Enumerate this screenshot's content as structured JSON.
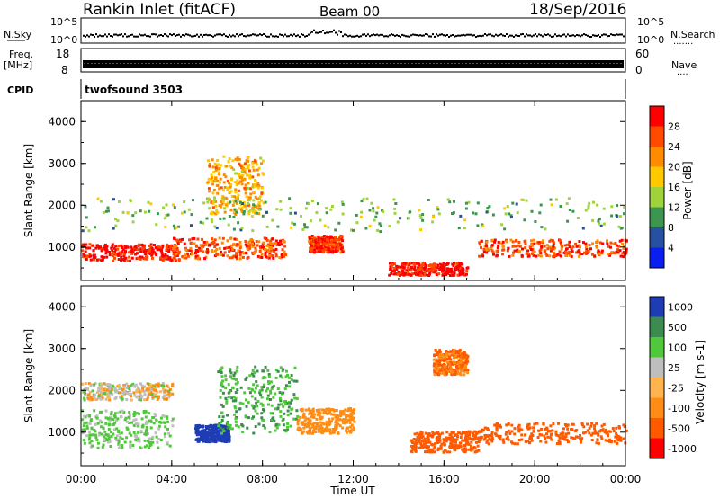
{
  "header": {
    "station": "Rankin Inlet (fitACF)",
    "beam": "Beam 00",
    "date": "18/Sep/2016"
  },
  "strips": {
    "nsky_label": "N.Sky",
    "nsky_ticks": [
      "10^5",
      "10^0"
    ],
    "nsearch_label": "N.Search",
    "nsearch_ticks": [
      "10^5",
      "10^0"
    ],
    "freq_label_1": "Freq.",
    "freq_label_2": "[MHz]",
    "freq_ticks": [
      "18",
      "8"
    ],
    "nave_label": "Nave",
    "nave_ticks": [
      "60",
      "0"
    ],
    "cpid_label": "CPID",
    "cpid_value": "twofsound 3503"
  },
  "chart_data": [
    {
      "type": "heatmap",
      "panel": "power",
      "xlabel": "",
      "ylabel": "Slant Range [km]",
      "y_ticks": [
        "1000",
        "2000",
        "3000",
        "4000"
      ],
      "ylim": [
        200,
        4500
      ],
      "xlim": [
        "00:00",
        "24:00"
      ],
      "colorbar_label": "Power [dB]",
      "colorbar_ticks": [
        "28",
        "24",
        "20",
        "16",
        "12",
        "8",
        "4"
      ],
      "colorbar_colors": [
        "#ff0000",
        "#ff4a00",
        "#ff8c00",
        "#ffc800",
        "#a0d23c",
        "#3c9650",
        "#2850a0",
        "#0a1ef0"
      ],
      "regions": [
        {
          "t_start": 0.0,
          "t_end": 4.3,
          "r_center": 900,
          "r_width": 400,
          "power_db": 28
        },
        {
          "t_start": 4.0,
          "t_end": 9.0,
          "r_center": 1000,
          "r_width": 500,
          "power_db": 24
        },
        {
          "t_start": 5.5,
          "t_end": 8.0,
          "r_center": 2500,
          "r_width": 1400,
          "power_db": 18
        },
        {
          "t_start": 10.0,
          "t_end": 11.5,
          "r_center": 1100,
          "r_width": 400,
          "power_db": 26
        },
        {
          "t_start": 13.5,
          "t_end": 17.0,
          "r_center": 500,
          "r_width": 300,
          "power_db": 28
        },
        {
          "t_start": 17.5,
          "t_end": 24.0,
          "r_center": 1000,
          "r_width": 400,
          "power_db": 24
        },
        {
          "t_start": 0.0,
          "t_end": 24.0,
          "r_center": 1800,
          "r_width": 800,
          "power_db": 10
        }
      ]
    },
    {
      "type": "heatmap",
      "panel": "velocity",
      "xlabel": "Time UT",
      "ylabel": "Slant Range [km]",
      "x_ticks": [
        "00:00",
        "04:00",
        "08:00",
        "12:00",
        "16:00",
        "20:00",
        "00:00"
      ],
      "y_ticks": [
        "1000",
        "2000",
        "3000",
        "4000"
      ],
      "ylim": [
        200,
        4500
      ],
      "xlim": [
        "00:00",
        "24:00"
      ],
      "colorbar_label": "Velocity [m s-1]",
      "colorbar_ticks": [
        "1000",
        "500",
        "100",
        "25",
        "-25",
        "-100",
        "-500",
        "-1000"
      ],
      "colorbar_colors": [
        "#1e3cb4",
        "#3c8c50",
        "#50c83c",
        "#bebebe",
        "#ffb450",
        "#ff8c14",
        "#ff5a00",
        "#ff0000"
      ],
      "regions": [
        {
          "t_start": 0.0,
          "t_end": 4.0,
          "r_center": 1100,
          "r_width": 900,
          "velocity": 100
        },
        {
          "t_start": 0.0,
          "t_end": 4.0,
          "r_center": 2000,
          "r_width": 400,
          "velocity": 0
        },
        {
          "t_start": 5.0,
          "t_end": 6.5,
          "r_center": 1000,
          "r_width": 400,
          "velocity": 1000
        },
        {
          "t_start": 6.0,
          "t_end": 9.5,
          "r_center": 1800,
          "r_width": 1600,
          "velocity": 300
        },
        {
          "t_start": 9.5,
          "t_end": 12.0,
          "r_center": 1300,
          "r_width": 600,
          "velocity": -200
        },
        {
          "t_start": 14.5,
          "t_end": 17.5,
          "r_center": 800,
          "r_width": 500,
          "velocity": -500
        },
        {
          "t_start": 17.5,
          "t_end": 24.0,
          "r_center": 1000,
          "r_width": 500,
          "velocity": -400
        },
        {
          "t_start": 15.5,
          "t_end": 17.0,
          "r_center": 2700,
          "r_width": 600,
          "velocity": -300
        }
      ]
    }
  ]
}
